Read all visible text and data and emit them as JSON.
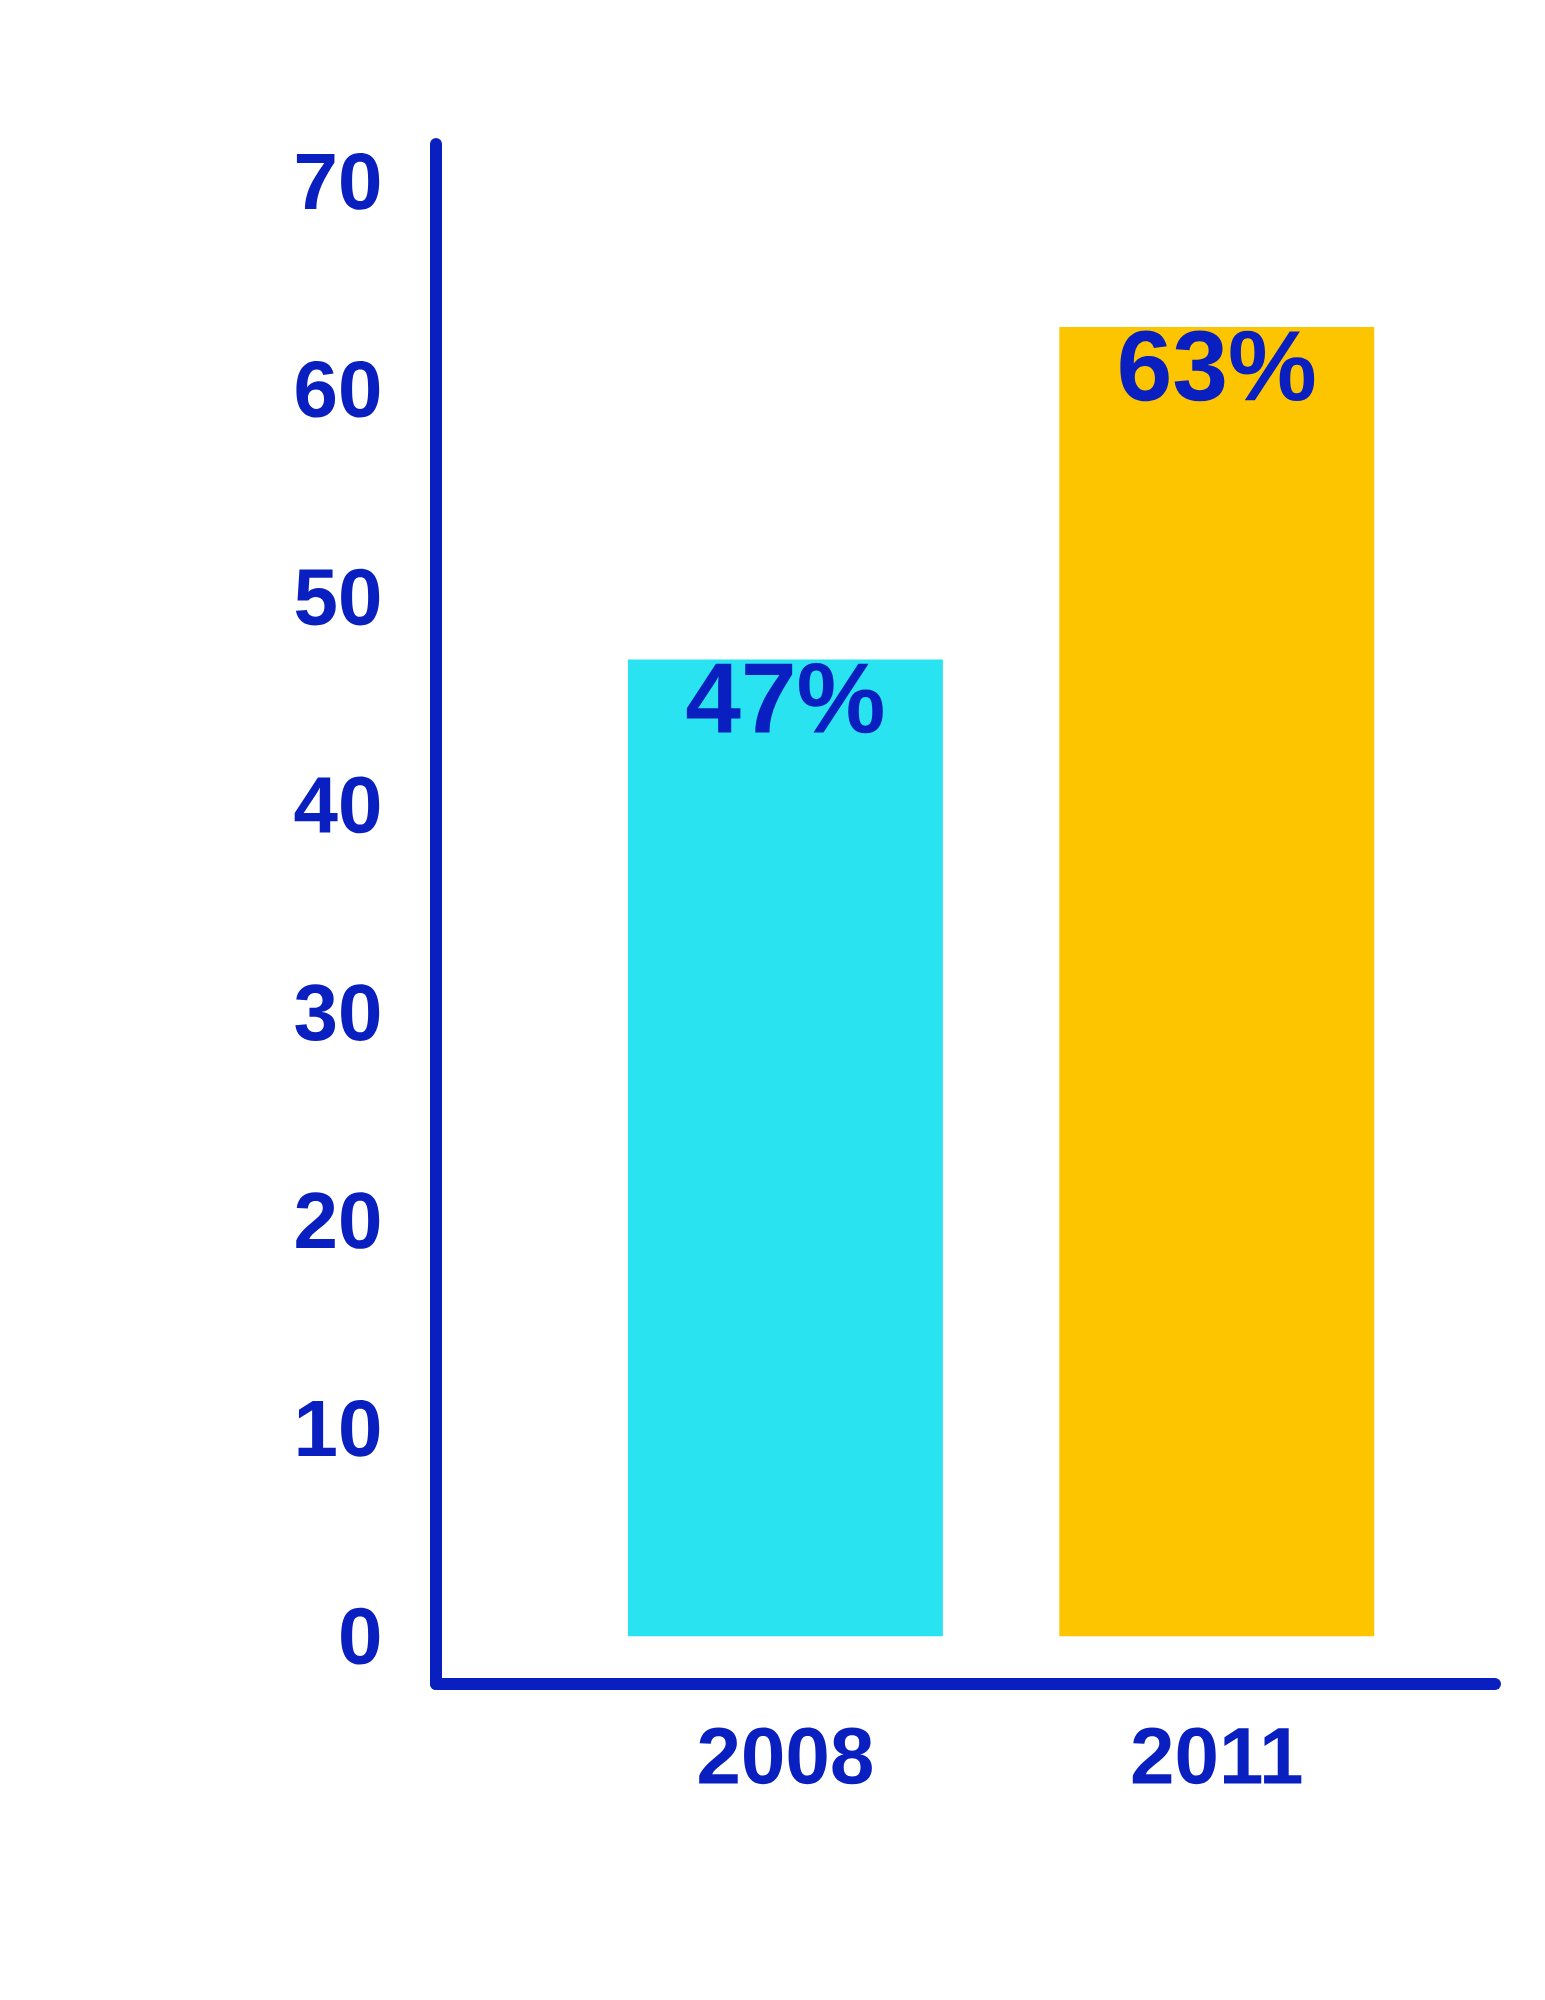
{
  "chart_data": {
    "type": "bar",
    "categories": [
      "2008",
      "2011"
    ],
    "values": [
      47,
      63
    ],
    "colors": [
      "#29e3f0",
      "#fdc500"
    ],
    "value_labels": [
      "47%",
      "63%"
    ],
    "ylim": [
      -2.3,
      71.8
    ],
    "yticks": [
      0,
      10,
      20,
      30,
      40,
      50,
      60,
      70
    ],
    "grid": false
  }
}
